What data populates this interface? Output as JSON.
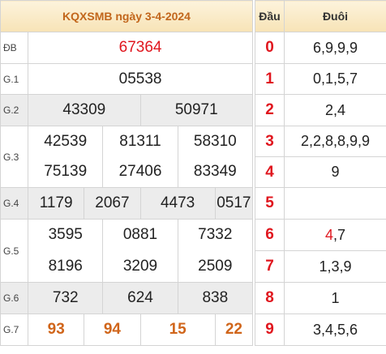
{
  "title": "KQXSMB ngày 3-4-2024",
  "prizes": {
    "db": {
      "label": "ĐB",
      "values": [
        "67364"
      ]
    },
    "g1": {
      "label": "G.1",
      "values": [
        "05538"
      ]
    },
    "g2": {
      "label": "G.2",
      "values": [
        "43309",
        "50971"
      ]
    },
    "g3": {
      "label": "G.3",
      "values": [
        "42539",
        "81311",
        "58310",
        "75139",
        "27406",
        "83349"
      ]
    },
    "g4": {
      "label": "G.4",
      "values": [
        "1179",
        "2067",
        "4473",
        "0517"
      ]
    },
    "g5": {
      "label": "G.5",
      "values": [
        "3595",
        "0881",
        "7332",
        "8196",
        "3209",
        "2509"
      ]
    },
    "g6": {
      "label": "G.6",
      "values": [
        "732",
        "624",
        "838"
      ]
    },
    "g7": {
      "label": "G.7",
      "values": [
        "93",
        "94",
        "15",
        "22"
      ]
    }
  },
  "loto": {
    "head_label": "Đầu",
    "tail_label": "Đuôi",
    "rows": [
      {
        "head": "0",
        "tail": "6,9,9,9"
      },
      {
        "head": "1",
        "tail": "0,1,5,7"
      },
      {
        "head": "2",
        "tail": "2,4"
      },
      {
        "head": "3",
        "tail": "2,2,8,8,9,9"
      },
      {
        "head": "4",
        "tail": "9"
      },
      {
        "head": "5",
        "tail": ""
      },
      {
        "head": "6",
        "tail_highlight": "4",
        "tail_rest": ",7"
      },
      {
        "head": "7",
        "tail": "1,3,9"
      },
      {
        "head": "8",
        "tail": "1"
      },
      {
        "head": "9",
        "tail": "3,4,5,6"
      }
    ]
  }
}
